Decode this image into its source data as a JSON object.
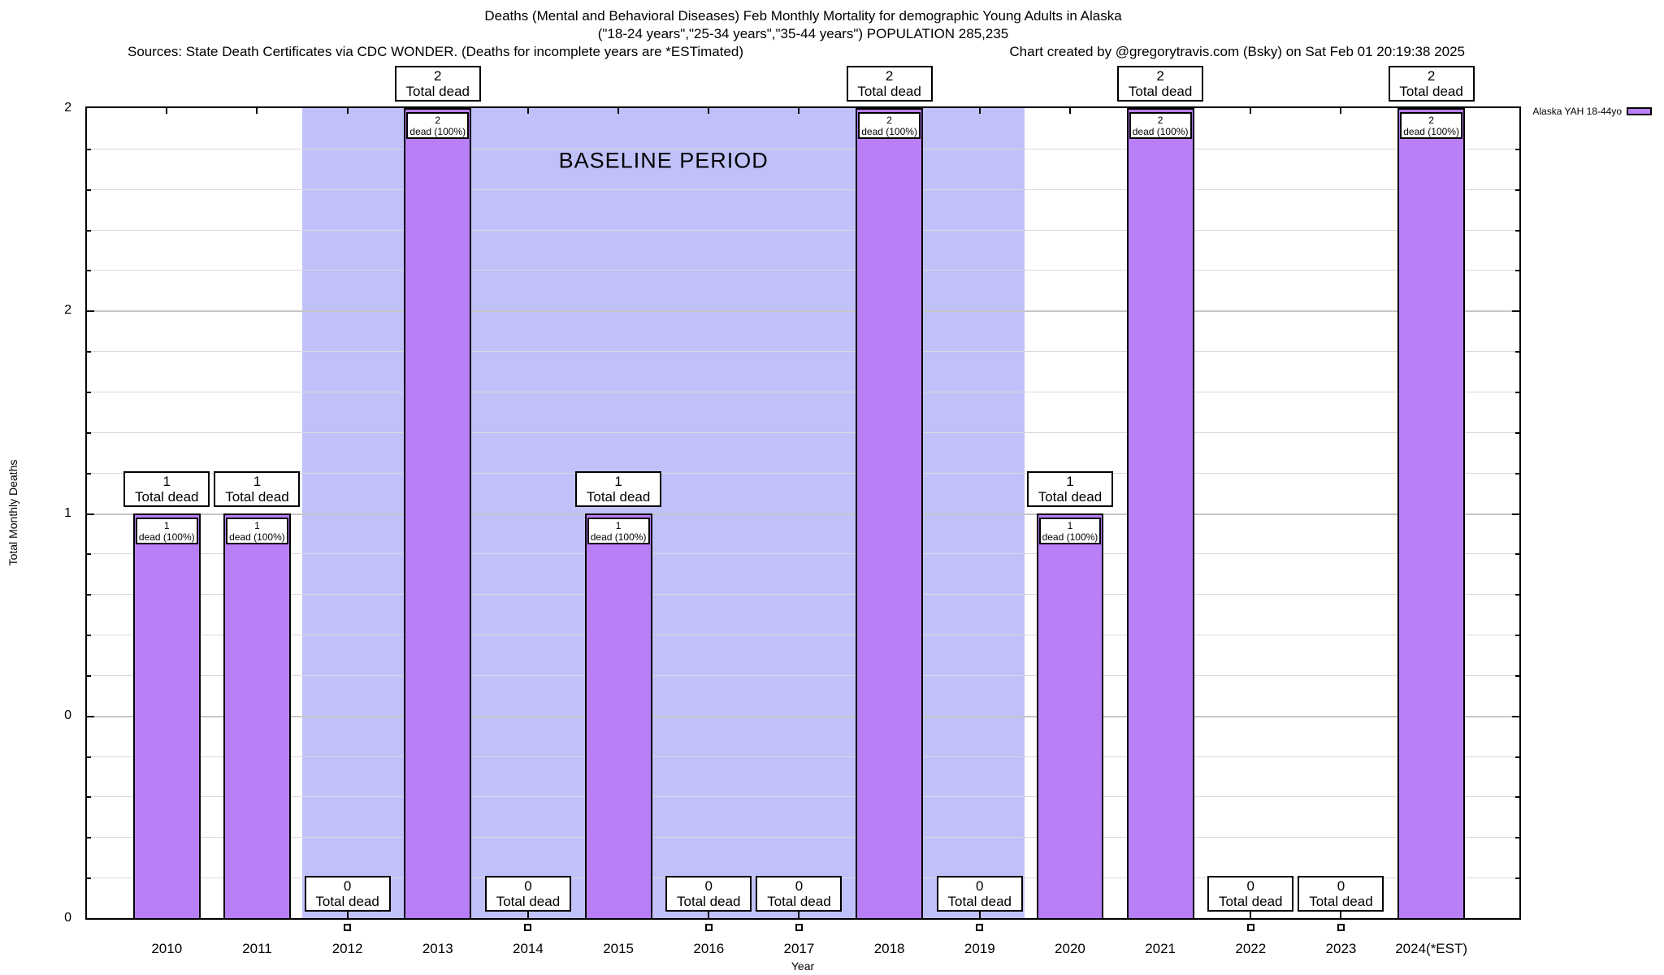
{
  "titles": {
    "line1": "Deaths (Mental and Behavioral Diseases) Feb Monthly Mortality for demographic Young Adults in Alaska",
    "line2": "(\"18-24 years\",\"25-34 years\",\"35-44 years\") POPULATION 285,235",
    "sources": "Sources: State Death Certificates via CDC WONDER. (Deaths for incomplete years are *ESTimated)",
    "credit": "Chart created by @gregorytravis.com (Bsky) on Sat Feb 01 20:19:38 2025"
  },
  "legend": {
    "label": "Alaska YAH 18-44yo",
    "swatch_color": "#b97ff7"
  },
  "y_axis": {
    "label": "Total Monthly Deaths",
    "tick_labels": [
      "2",
      "2",
      "1",
      "0",
      "0"
    ],
    "tick_values": [
      2,
      1.5,
      1,
      0.5,
      0
    ],
    "range": [
      0,
      2
    ]
  },
  "x_axis": {
    "label": "Year"
  },
  "chart_data": {
    "type": "bar",
    "title": "Deaths (Mental and Behavioral Diseases) Feb Monthly Mortality for demographic Young Adults in Alaska (\"18-24 years\",\"25-34 years\",\"35-44 years\") POPULATION 285,235",
    "xlabel": "Year",
    "ylabel": "Total Monthly Deaths",
    "ylim": [
      0,
      2
    ],
    "grid": true,
    "legend_position": "top-right",
    "series_name": "Alaska YAH 18-44yo",
    "bar_color": "#b97ff7",
    "baseline_region": {
      "label": "BASELINE PERIOD",
      "start_year": "2012",
      "end_year": "2019",
      "color": "#c1c1fa"
    },
    "categories": [
      "2010",
      "2011",
      "2012",
      "2013",
      "2014",
      "2015",
      "2016",
      "2017",
      "2018",
      "2019",
      "2020",
      "2021",
      "2022",
      "2023",
      "2024(*EST)"
    ],
    "values": [
      1,
      1,
      0,
      2,
      0,
      1,
      0,
      0,
      2,
      0,
      1,
      2,
      0,
      0,
      2
    ],
    "bars": [
      {
        "label": "2010",
        "value": 1,
        "box_value": "1",
        "box_text": "Total dead",
        "inner_value": "1",
        "inner_text": "dead (100%)"
      },
      {
        "label": "2011",
        "value": 1,
        "box_value": "1",
        "box_text": "Total dead",
        "inner_value": "1",
        "inner_text": "dead (100%)"
      },
      {
        "label": "2012",
        "value": 0,
        "box_value": "0",
        "box_text": "Total dead"
      },
      {
        "label": "2013",
        "value": 2,
        "box_value": "2",
        "box_text": "Total dead",
        "inner_value": "2",
        "inner_text": "dead (100%)"
      },
      {
        "label": "2014",
        "value": 0,
        "box_value": "0",
        "box_text": "Total dead"
      },
      {
        "label": "2015",
        "value": 1,
        "box_value": "1",
        "box_text": "Total dead",
        "inner_value": "1",
        "inner_text": "dead (100%)"
      },
      {
        "label": "2016",
        "value": 0,
        "box_value": "0",
        "box_text": "Total dead"
      },
      {
        "label": "2017",
        "value": 0,
        "box_value": "0",
        "box_text": "Total dead"
      },
      {
        "label": "2018",
        "value": 2,
        "box_value": "2",
        "box_text": "Total dead",
        "inner_value": "2",
        "inner_text": "dead (100%)"
      },
      {
        "label": "2019",
        "value": 0,
        "box_value": "0",
        "box_text": "Total dead"
      },
      {
        "label": "2020",
        "value": 1,
        "box_value": "1",
        "box_text": "Total dead",
        "inner_value": "1",
        "inner_text": "dead (100%)"
      },
      {
        "label": "2021",
        "value": 2,
        "box_value": "2",
        "box_text": "Total dead",
        "inner_value": "2",
        "inner_text": "dead (100%)"
      },
      {
        "label": "2022",
        "value": 0,
        "box_value": "0",
        "box_text": "Total dead"
      },
      {
        "label": "2023",
        "value": 0,
        "box_value": "0",
        "box_text": "Total dead"
      },
      {
        "label": "2024(*EST)",
        "value": 2,
        "box_value": "2",
        "box_text": "Total dead",
        "inner_value": "2",
        "inner_text": "dead (100%)"
      }
    ]
  }
}
